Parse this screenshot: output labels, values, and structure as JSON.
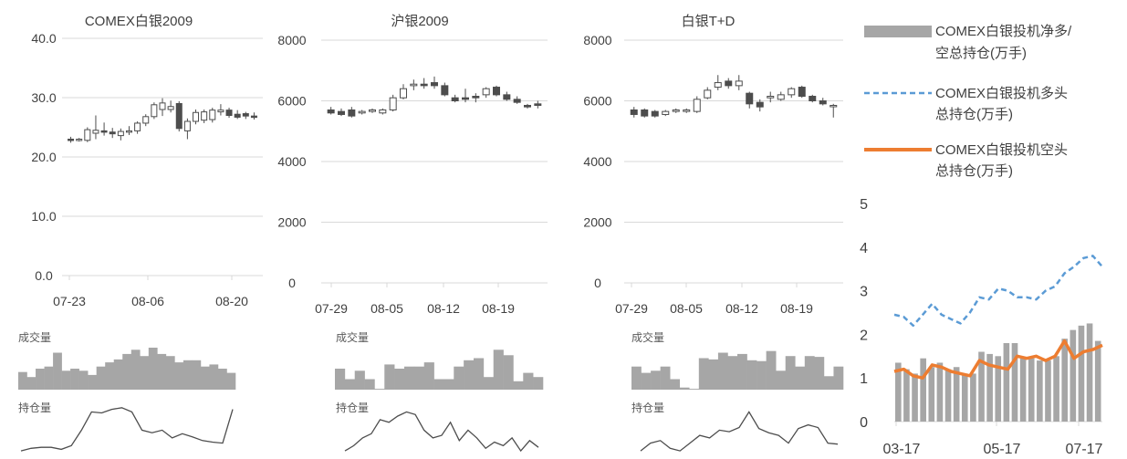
{
  "colors": {
    "candle": "#4d4d4d",
    "grid": "#d9d9d9",
    "axis_text": "#404040",
    "sub_bar": "#a6a6a6",
    "sub_line": "#4d4d4d",
    "net_bar": "#a6a6a6",
    "long_line": "#5b9bd5",
    "short_line": "#ed7d31"
  },
  "chart_data": [
    {
      "id": "comex",
      "type": "candlestick",
      "title": "COMEX白银2009",
      "ylim": [
        0,
        40
      ],
      "yticks": [
        "40.0",
        "30.0",
        "20.0",
        "10.0",
        "0.0"
      ],
      "x_ticks": [
        "07-23",
        "08-06",
        "08-20"
      ],
      "candles": [
        {
          "o": 23.0,
          "h": 23.4,
          "l": 22.4,
          "c": 22.8
        },
        {
          "o": 22.9,
          "h": 23.2,
          "l": 22.6,
          "c": 23.0
        },
        {
          "o": 22.8,
          "h": 25.0,
          "l": 22.5,
          "c": 24.6
        },
        {
          "o": 24.0,
          "h": 27.0,
          "l": 23.0,
          "c": 24.5
        },
        {
          "o": 24.4,
          "h": 25.8,
          "l": 23.6,
          "c": 24.2
        },
        {
          "o": 24.2,
          "h": 24.9,
          "l": 23.2,
          "c": 23.9
        },
        {
          "o": 23.6,
          "h": 24.8,
          "l": 22.8,
          "c": 24.3
        },
        {
          "o": 24.3,
          "h": 25.2,
          "l": 23.7,
          "c": 24.4
        },
        {
          "o": 24.4,
          "h": 26.0,
          "l": 23.9,
          "c": 25.7
        },
        {
          "o": 25.7,
          "h": 27.2,
          "l": 25.2,
          "c": 26.8
        },
        {
          "o": 26.8,
          "h": 29.2,
          "l": 26.4,
          "c": 28.8
        },
        {
          "o": 28.0,
          "h": 29.9,
          "l": 26.9,
          "c": 29.1
        },
        {
          "o": 28.0,
          "h": 29.5,
          "l": 27.5,
          "c": 28.5
        },
        {
          "o": 29.0,
          "h": 29.4,
          "l": 24.3,
          "c": 24.8
        },
        {
          "o": 24.4,
          "h": 26.5,
          "l": 23.0,
          "c": 26.0
        },
        {
          "o": 26.0,
          "h": 28.0,
          "l": 25.5,
          "c": 27.5
        },
        {
          "o": 26.2,
          "h": 28.0,
          "l": 25.7,
          "c": 27.6
        },
        {
          "o": 26.3,
          "h": 28.3,
          "l": 25.8,
          "c": 27.9
        },
        {
          "o": 27.6,
          "h": 28.9,
          "l": 27.0,
          "c": 27.9
        },
        {
          "o": 27.9,
          "h": 28.3,
          "l": 26.6,
          "c": 27.0
        },
        {
          "o": 27.2,
          "h": 27.9,
          "l": 26.4,
          "c": 26.7
        },
        {
          "o": 27.3,
          "h": 27.6,
          "l": 26.4,
          "c": 26.9
        },
        {
          "o": 26.9,
          "h": 27.5,
          "l": 26.3,
          "c": 26.7
        }
      ],
      "volume_label": "成交量",
      "volume": [
        0.42,
        0.3,
        0.5,
        0.55,
        0.88,
        0.45,
        0.5,
        0.45,
        0.35,
        0.55,
        0.65,
        0.72,
        0.85,
        0.95,
        0.8,
        1.0,
        0.85,
        0.8,
        0.65,
        0.7,
        0.7,
        0.55,
        0.6,
        0.5,
        0.4
      ],
      "oi_label": "持仓量",
      "oi": [
        0.05,
        0.1,
        0.12,
        0.12,
        0.08,
        0.15,
        0.45,
        0.8,
        0.78,
        0.85,
        0.88,
        0.8,
        0.45,
        0.4,
        0.45,
        0.3,
        0.38,
        0.32,
        0.25,
        0.22,
        0.2,
        0.85
      ]
    },
    {
      "id": "shfe",
      "type": "candlestick",
      "title": "沪银2009",
      "ylim": [
        0,
        8000
      ],
      "yticks": [
        "8000",
        "6000",
        "4000",
        "2000",
        "0"
      ],
      "x_ticks": [
        "07-29",
        "08-05",
        "08-12",
        "08-19"
      ],
      "candles": [
        {
          "o": 5700,
          "h": 5800,
          "l": 5550,
          "c": 5600
        },
        {
          "o": 5650,
          "h": 5750,
          "l": 5500,
          "c": 5550
        },
        {
          "o": 5700,
          "h": 5800,
          "l": 5450,
          "c": 5500
        },
        {
          "o": 5600,
          "h": 5700,
          "l": 5550,
          "c": 5650
        },
        {
          "o": 5650,
          "h": 5750,
          "l": 5600,
          "c": 5700
        },
        {
          "o": 5600,
          "h": 5750,
          "l": 5550,
          "c": 5700
        },
        {
          "o": 5700,
          "h": 6200,
          "l": 5650,
          "c": 6100
        },
        {
          "o": 6100,
          "h": 6550,
          "l": 6050,
          "c": 6400
        },
        {
          "o": 6500,
          "h": 6700,
          "l": 6350,
          "c": 6550
        },
        {
          "o": 6550,
          "h": 6750,
          "l": 6400,
          "c": 6500
        },
        {
          "o": 6600,
          "h": 6800,
          "l": 6400,
          "c": 6500
        },
        {
          "o": 6500,
          "h": 6600,
          "l": 6150,
          "c": 6200
        },
        {
          "o": 6100,
          "h": 6200,
          "l": 5950,
          "c": 6000
        },
        {
          "o": 6100,
          "h": 6400,
          "l": 5950,
          "c": 6050
        },
        {
          "o": 6150,
          "h": 6250,
          "l": 5950,
          "c": 6100
        },
        {
          "o": 6200,
          "h": 6450,
          "l": 6100,
          "c": 6400
        },
        {
          "o": 6450,
          "h": 6500,
          "l": 6150,
          "c": 6200
        },
        {
          "o": 6200,
          "h": 6300,
          "l": 6000,
          "c": 6050
        },
        {
          "o": 6050,
          "h": 6150,
          "l": 5900,
          "c": 5950
        },
        {
          "o": 5850,
          "h": 5900,
          "l": 5750,
          "c": 5800
        },
        {
          "o": 5900,
          "h": 6000,
          "l": 5750,
          "c": 5850
        }
      ],
      "volume_label": "成交量",
      "volume": [
        0.5,
        0.25,
        0.45,
        0.25,
        0.02,
        0.6,
        0.5,
        0.55,
        0.55,
        0.65,
        0.25,
        0.25,
        0.55,
        0.7,
        0.75,
        0.3,
        0.95,
        0.82,
        0.2,
        0.4,
        0.3
      ],
      "oi_label": "持仓量",
      "oi": [
        0.05,
        0.15,
        0.3,
        0.38,
        0.65,
        0.6,
        0.72,
        0.8,
        0.75,
        0.45,
        0.3,
        0.35,
        0.6,
        0.25,
        0.45,
        0.3,
        0.1,
        0.22,
        0.15,
        0.3,
        0.05,
        0.25,
        0.12
      ]
    },
    {
      "id": "sge",
      "type": "candlestick",
      "title": "白银T+D",
      "ylim": [
        0,
        8000
      ],
      "yticks": [
        "8000",
        "6000",
        "4000",
        "2000",
        "0"
      ],
      "x_ticks": [
        "07-29",
        "08-05",
        "08-12",
        "08-19"
      ],
      "candles": [
        {
          "o": 5700,
          "h": 5800,
          "l": 5450,
          "c": 5550
        },
        {
          "o": 5700,
          "h": 5750,
          "l": 5450,
          "c": 5500
        },
        {
          "o": 5650,
          "h": 5700,
          "l": 5450,
          "c": 5500
        },
        {
          "o": 5550,
          "h": 5700,
          "l": 5500,
          "c": 5650
        },
        {
          "o": 5650,
          "h": 5750,
          "l": 5600,
          "c": 5700
        },
        {
          "o": 5650,
          "h": 5750,
          "l": 5600,
          "c": 5700
        },
        {
          "o": 5650,
          "h": 6150,
          "l": 5600,
          "c": 6050
        },
        {
          "o": 6100,
          "h": 6450,
          "l": 6050,
          "c": 6350
        },
        {
          "o": 6450,
          "h": 6850,
          "l": 6350,
          "c": 6600
        },
        {
          "o": 6650,
          "h": 6750,
          "l": 6400,
          "c": 6500
        },
        {
          "o": 6500,
          "h": 6850,
          "l": 6350,
          "c": 6650
        },
        {
          "o": 6250,
          "h": 6300,
          "l": 5750,
          "c": 5900
        },
        {
          "o": 5950,
          "h": 6050,
          "l": 5650,
          "c": 5800
        },
        {
          "o": 6100,
          "h": 6300,
          "l": 5950,
          "c": 6150
        },
        {
          "o": 6050,
          "h": 6300,
          "l": 6000,
          "c": 6200
        },
        {
          "o": 6200,
          "h": 6450,
          "l": 6100,
          "c": 6400
        },
        {
          "o": 6450,
          "h": 6500,
          "l": 6100,
          "c": 6150
        },
        {
          "o": 6150,
          "h": 6200,
          "l": 5950,
          "c": 6000
        },
        {
          "o": 6000,
          "h": 6100,
          "l": 5850,
          "c": 5900
        },
        {
          "o": 5850,
          "h": 5900,
          "l": 5450,
          "c": 5850
        }
      ],
      "volume_label": "成交量",
      "volume": [
        0.55,
        0.4,
        0.45,
        0.55,
        0.25,
        0.05,
        0.02,
        0.75,
        0.72,
        0.88,
        0.8,
        0.85,
        0.7,
        0.68,
        0.92,
        0.45,
        0.8,
        0.55,
        0.8,
        0.78,
        0.32,
        0.55
      ],
      "oi_label": "持仓量",
      "oi": [
        0.05,
        0.2,
        0.25,
        0.1,
        0.05,
        0.2,
        0.35,
        0.3,
        0.45,
        0.42,
        0.5,
        0.8,
        0.48,
        0.4,
        0.35,
        0.2,
        0.48,
        0.55,
        0.5,
        0.2,
        0.18
      ]
    },
    {
      "id": "cftc",
      "type": "bar+line",
      "ylim": [
        0,
        5
      ],
      "yticks": [
        "5",
        "4",
        "3",
        "2",
        "1",
        "0"
      ],
      "x_ticks": [
        "03-17",
        "05-17",
        "07-17"
      ],
      "series": [
        {
          "name": "COMEX白银投机净多/空总持仓(万手)",
          "type": "bar",
          "values": [
            1.35,
            1.2,
            1.1,
            1.45,
            1.25,
            1.35,
            1.2,
            1.25,
            1.1,
            1.1,
            1.6,
            1.55,
            1.5,
            1.8,
            1.8,
            1.45,
            1.45,
            1.4,
            1.4,
            1.5,
            1.9,
            2.1,
            2.2,
            2.25,
            1.85
          ]
        },
        {
          "name": "COMEX白银投机多头总持仓(万手)",
          "type": "line",
          "values": [
            2.45,
            2.4,
            2.2,
            2.45,
            2.7,
            2.45,
            2.35,
            2.25,
            2.5,
            2.85,
            2.8,
            3.05,
            3.0,
            2.85,
            2.85,
            2.8,
            3.0,
            3.1,
            3.4,
            3.55,
            3.75,
            3.8,
            3.55
          ]
        },
        {
          "name": "COMEX白银投机空头总持仓(万手)",
          "type": "line",
          "values": [
            1.15,
            1.2,
            1.05,
            1.0,
            1.3,
            1.25,
            1.15,
            1.1,
            1.05,
            1.4,
            1.3,
            1.25,
            1.2,
            1.5,
            1.45,
            1.5,
            1.4,
            1.5,
            1.85,
            1.45,
            1.6,
            1.65,
            1.75
          ]
        }
      ],
      "legend_lines": [
        [
          "COMEX白银投机净多/",
          "空总持仓(万手)"
        ],
        [
          "COMEX白银投机多头",
          "总持仓(万手)"
        ],
        [
          "COMEX白银投机空头",
          "总持仓(万手)"
        ]
      ]
    }
  ]
}
